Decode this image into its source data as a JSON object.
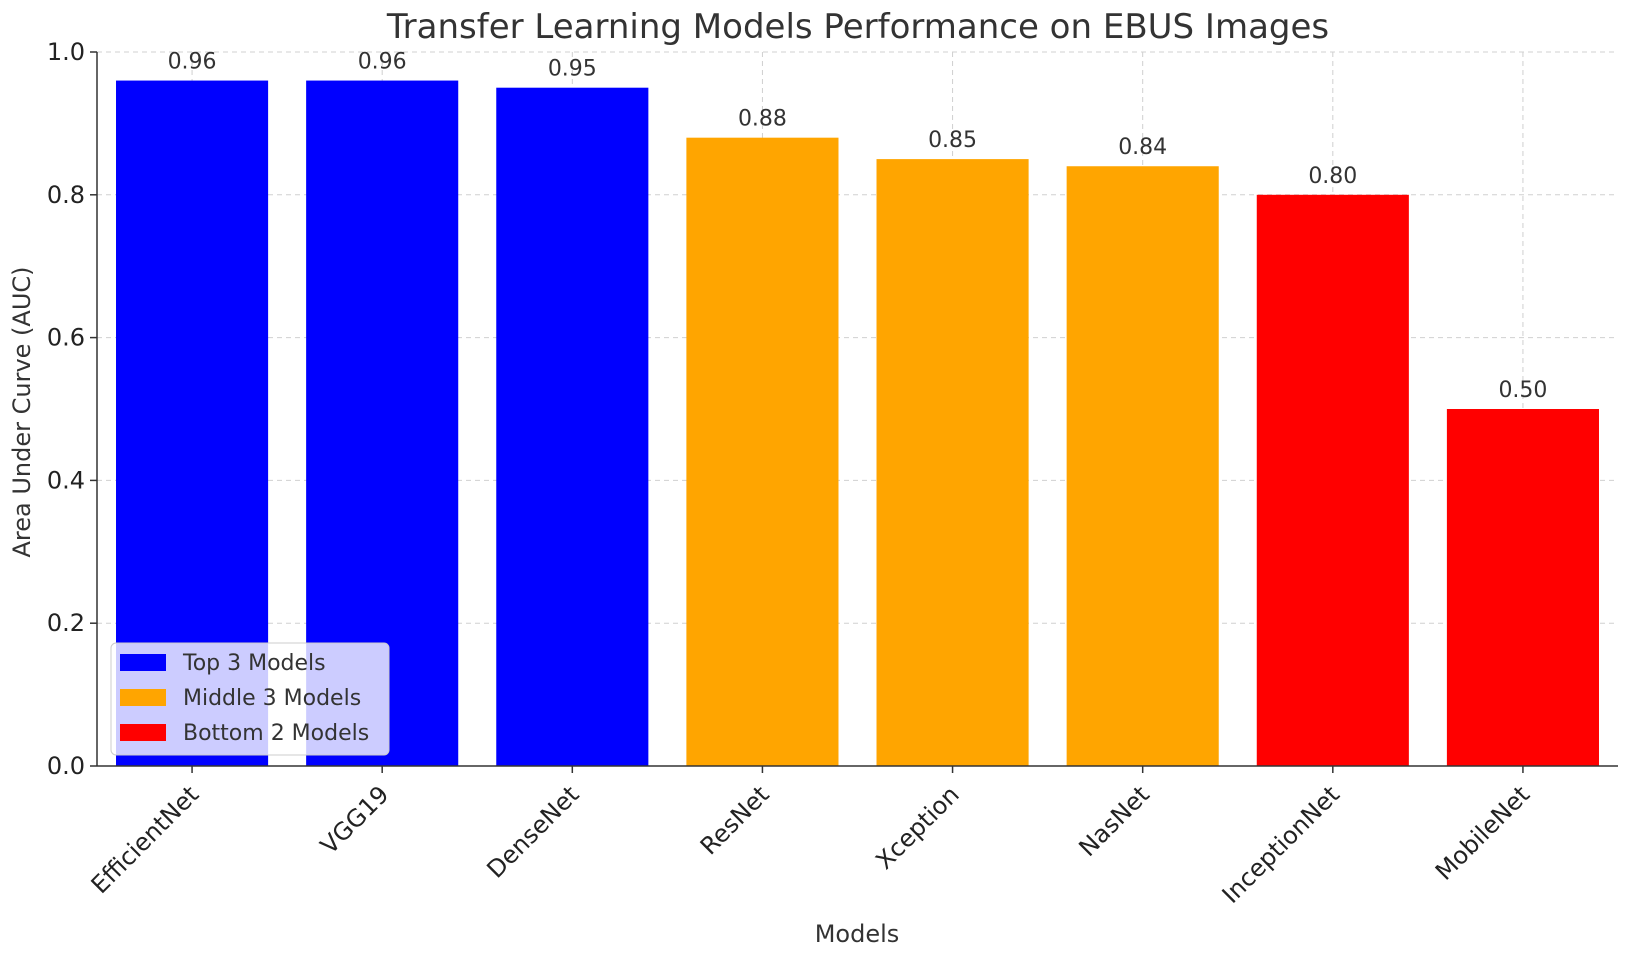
{
  "chart_data": {
    "type": "bar",
    "title": "Transfer Learning Models Performance on EBUS Images",
    "xlabel": "Models",
    "ylabel": "Area Under Curve (AUC)",
    "ylim": [
      0,
      1.0
    ],
    "yticks": [
      "0.0",
      "0.2",
      "0.4",
      "0.6",
      "0.8",
      "1.0"
    ],
    "grid": true,
    "legend_position": "lower-left",
    "categories": [
      "EfficientNet",
      "VGG19",
      "DenseNet",
      "ResNet",
      "Xception",
      "NasNet",
      "InceptionNet",
      "MobileNet"
    ],
    "values": [
      0.96,
      0.96,
      0.95,
      0.88,
      0.85,
      0.84,
      0.8,
      0.5
    ],
    "value_labels": [
      "0.96",
      "0.96",
      "0.95",
      "0.88",
      "0.85",
      "0.84",
      "0.80",
      "0.50"
    ],
    "groups": [
      0,
      0,
      0,
      1,
      1,
      1,
      2,
      2
    ],
    "legend": [
      {
        "label": "Top 3 Models",
        "color": "#0000ff"
      },
      {
        "label": "Middle 3 Models",
        "color": "#ffa500"
      },
      {
        "label": "Bottom 2 Models",
        "color": "#ff0000"
      }
    ]
  }
}
